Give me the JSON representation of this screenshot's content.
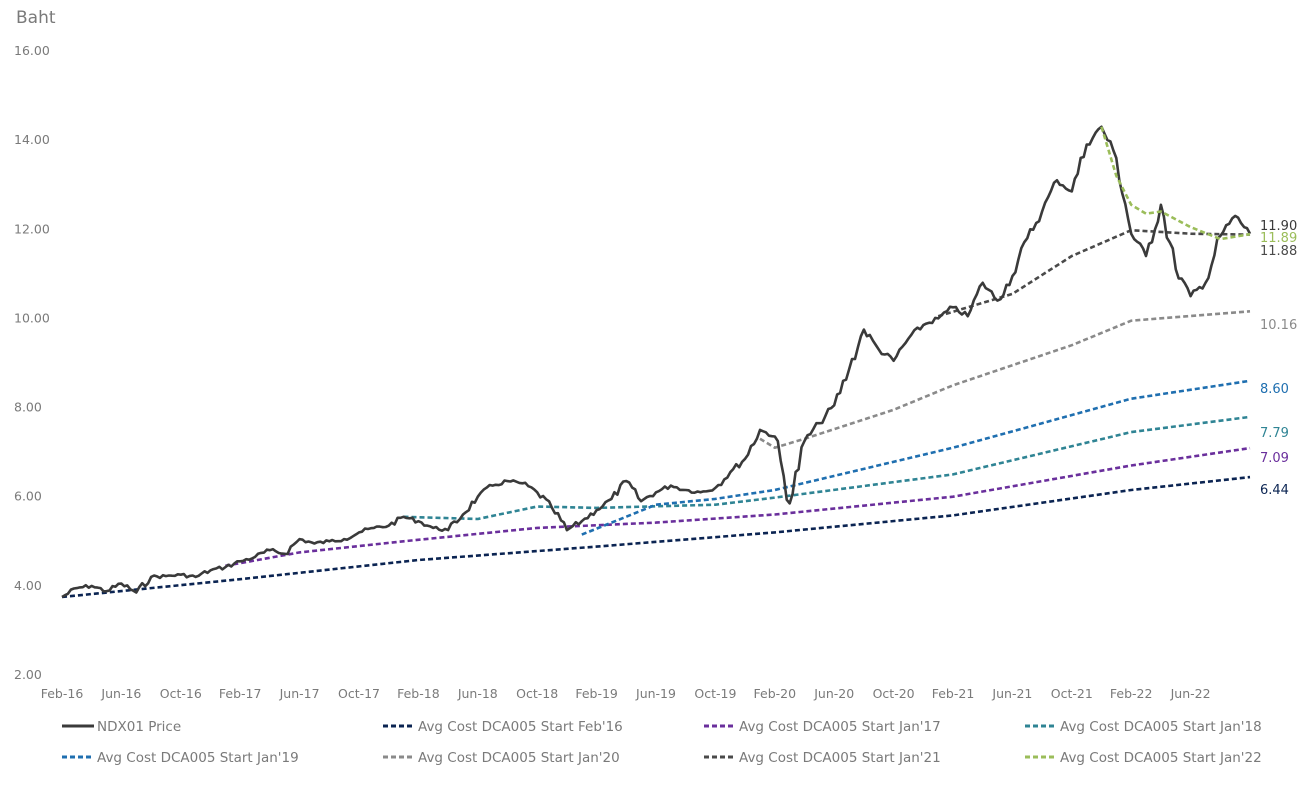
{
  "chart_data": {
    "type": "line",
    "title": "",
    "ylabel": "Baht",
    "xlabel": "",
    "ylim": [
      2,
      16
    ],
    "y_ticks": [
      "16.00",
      "14.00",
      "12.00",
      "10.00",
      "8.00",
      "6.00",
      "4.00",
      "2.00"
    ],
    "x_ticks": [
      "Feb-16",
      "Jun-16",
      "Oct-16",
      "Feb-17",
      "Jun-17",
      "Oct-17",
      "Feb-18",
      "Jun-18",
      "Oct-18",
      "Feb-19",
      "Jun-19",
      "Oct-19",
      "Feb-20",
      "Jun-20",
      "Oct-20",
      "Feb-21",
      "Jun-21",
      "Oct-21",
      "Feb-22",
      "Jun-22"
    ],
    "grid": false,
    "legend_position": "bottom",
    "series": [
      {
        "name": "NDX01 Price",
        "style": "solid",
        "color": "#3a3a3a",
        "end_label": "11.90",
        "points": [
          [
            "Feb-16",
            3.75
          ],
          [
            "Mar-16",
            3.95
          ],
          [
            "Apr-16",
            4.0
          ],
          [
            "May-16",
            3.88
          ],
          [
            "Jun-16",
            4.05
          ],
          [
            "Jul-16",
            3.85
          ],
          [
            "Aug-16",
            4.2
          ],
          [
            "Sep-16",
            4.22
          ],
          [
            "Oct-16",
            4.25
          ],
          [
            "Nov-16",
            4.2
          ],
          [
            "Dec-16",
            4.35
          ],
          [
            "Jan-17",
            4.42
          ],
          [
            "Feb-17",
            4.55
          ],
          [
            "Mar-17",
            4.65
          ],
          [
            "Apr-17",
            4.8
          ],
          [
            "May-17",
            4.72
          ],
          [
            "Jun-17",
            5.05
          ],
          [
            "Jul-17",
            4.95
          ],
          [
            "Aug-17",
            5.0
          ],
          [
            "Sep-17",
            5.05
          ],
          [
            "Oct-17",
            5.2
          ],
          [
            "Nov-17",
            5.3
          ],
          [
            "Dec-17",
            5.35
          ],
          [
            "Jan-18",
            5.55
          ],
          [
            "Feb-18",
            5.45
          ],
          [
            "Mar-18",
            5.3
          ],
          [
            "Apr-18",
            5.25
          ],
          [
            "May-18",
            5.6
          ],
          [
            "Jun-18",
            6.0
          ],
          [
            "Jul-18",
            6.25
          ],
          [
            "Aug-18",
            6.35
          ],
          [
            "Sep-18",
            6.3
          ],
          [
            "Oct-18",
            6.1
          ],
          [
            "Nov-18",
            5.75
          ],
          [
            "Dec-18",
            5.25
          ],
          [
            "Jan-19",
            5.45
          ],
          [
            "Feb-19",
            5.7
          ],
          [
            "Mar-19",
            5.95
          ],
          [
            "Apr-19",
            6.35
          ],
          [
            "May-19",
            5.9
          ],
          [
            "Jun-19",
            6.1
          ],
          [
            "Jul-19",
            6.25
          ],
          [
            "Aug-19",
            6.15
          ],
          [
            "Sep-19",
            6.1
          ],
          [
            "Oct-19",
            6.2
          ],
          [
            "Nov-19",
            6.55
          ],
          [
            "Dec-19",
            6.85
          ],
          [
            "Jan-20",
            7.5
          ],
          [
            "Feb-20",
            7.35
          ],
          [
            "Mar-20",
            5.85
          ],
          [
            "Apr-20",
            7.25
          ],
          [
            "May-20",
            7.65
          ],
          [
            "Jun-20",
            8.05
          ],
          [
            "Jul-20",
            8.85
          ],
          [
            "Aug-20",
            9.75
          ],
          [
            "Sep-20",
            9.3
          ],
          [
            "Oct-20",
            9.05
          ],
          [
            "Nov-20",
            9.55
          ],
          [
            "Dec-20",
            9.85
          ],
          [
            "Jan-21",
            10.0
          ],
          [
            "Feb-21",
            10.25
          ],
          [
            "Mar-21",
            10.05
          ],
          [
            "Apr-21",
            10.8
          ],
          [
            "May-21",
            10.4
          ],
          [
            "Jun-21",
            10.95
          ],
          [
            "Jul-21",
            11.8
          ],
          [
            "Aug-21",
            12.4
          ],
          [
            "Sep-21",
            13.1
          ],
          [
            "Oct-21",
            12.85
          ],
          [
            "Nov-21",
            13.9
          ],
          [
            "Dec-21",
            14.3
          ],
          [
            "Jan-22",
            13.6
          ],
          [
            "Feb-22",
            11.9
          ],
          [
            "Mar-22",
            11.4
          ],
          [
            "Apr-22",
            12.55
          ],
          [
            "May-22",
            11.1
          ],
          [
            "Jun-22",
            10.5
          ],
          [
            "Jul-22",
            10.8
          ],
          [
            "Aug-22",
            11.85
          ],
          [
            "Sep-22",
            12.3
          ],
          [
            "Oct-22",
            11.9
          ]
        ]
      },
      {
        "name": "Avg Cost DCA005 Start Feb'16",
        "style": "dashed",
        "color": "#0b2452",
        "end_label": "6.44",
        "points": [
          [
            "Feb-16",
            3.75
          ],
          [
            "Feb-17",
            4.15
          ],
          [
            "Feb-18",
            4.58
          ],
          [
            "Feb-19",
            4.88
          ],
          [
            "Feb-20",
            5.2
          ],
          [
            "Feb-21",
            5.58
          ],
          [
            "Feb-22",
            6.15
          ],
          [
            "Oct-22",
            6.44
          ]
        ]
      },
      {
        "name": "Avg Cost DCA005 Start Jan'17",
        "style": "dashed",
        "color": "#6a2f9c",
        "end_label": "7.09",
        "points": [
          [
            "Jan-17",
            4.45
          ],
          [
            "Jun-17",
            4.75
          ],
          [
            "Jan-18",
            5.0
          ],
          [
            "Oct-18",
            5.3
          ],
          [
            "Jun-19",
            5.42
          ],
          [
            "Feb-20",
            5.6
          ],
          [
            "Feb-21",
            6.0
          ],
          [
            "Feb-22",
            6.7
          ],
          [
            "Oct-22",
            7.09
          ]
        ]
      },
      {
        "name": "Avg Cost DCA005 Start Jan'18",
        "style": "dashed",
        "color": "#2f8494",
        "end_label": "7.79",
        "points": [
          [
            "Jan-18",
            5.55
          ],
          [
            "Jun-18",
            5.5
          ],
          [
            "Oct-18",
            5.78
          ],
          [
            "Feb-19",
            5.75
          ],
          [
            "Oct-19",
            5.82
          ],
          [
            "Feb-20",
            5.98
          ],
          [
            "Feb-21",
            6.5
          ],
          [
            "Feb-22",
            7.45
          ],
          [
            "Oct-22",
            7.79
          ]
        ]
      },
      {
        "name": "Avg Cost DCA005 Start Jan'19",
        "style": "dashed",
        "color": "#1f6fb0",
        "end_label": "8.60",
        "points": [
          [
            "Jan-19",
            5.15
          ],
          [
            "Jun-19",
            5.82
          ],
          [
            "Oct-19",
            5.95
          ],
          [
            "Feb-20",
            6.15
          ],
          [
            "Feb-21",
            7.1
          ],
          [
            "Feb-22",
            8.2
          ],
          [
            "Oct-22",
            8.6
          ]
        ]
      },
      {
        "name": "Avg Cost DCA005 Start Jan'20",
        "style": "dashed",
        "color": "#8a8a8a",
        "end_label": "10.16",
        "points": [
          [
            "Jan-20",
            7.3
          ],
          [
            "Feb-20",
            7.1
          ],
          [
            "Apr-20",
            7.3
          ],
          [
            "Oct-20",
            7.95
          ],
          [
            "Feb-21",
            8.5
          ],
          [
            "Oct-21",
            9.4
          ],
          [
            "Feb-22",
            9.95
          ],
          [
            "Oct-22",
            10.16
          ]
        ]
      },
      {
        "name": "Avg Cost DCA005 Start Jan'21",
        "style": "dashed",
        "color": "#4a4a4a",
        "end_label": "11.88",
        "points": [
          [
            "Jan-21",
            10.05
          ],
          [
            "Jun-21",
            10.55
          ],
          [
            "Oct-21",
            11.4
          ],
          [
            "Feb-22",
            11.98
          ],
          [
            "Jun-22",
            11.9
          ],
          [
            "Oct-22",
            11.88
          ]
        ]
      },
      {
        "name": "Avg Cost DCA005 Start Jan'22",
        "style": "dashed",
        "color": "#9bbd5a",
        "end_label": "11.89",
        "points": [
          [
            "Dec-21",
            14.3
          ],
          [
            "Jan-22",
            13.2
          ],
          [
            "Feb-22",
            12.55
          ],
          [
            "Mar-22",
            12.35
          ],
          [
            "Apr-22",
            12.4
          ],
          [
            "Jun-22",
            12.05
          ],
          [
            "Aug-22",
            11.78
          ],
          [
            "Oct-22",
            11.89
          ]
        ]
      }
    ]
  }
}
